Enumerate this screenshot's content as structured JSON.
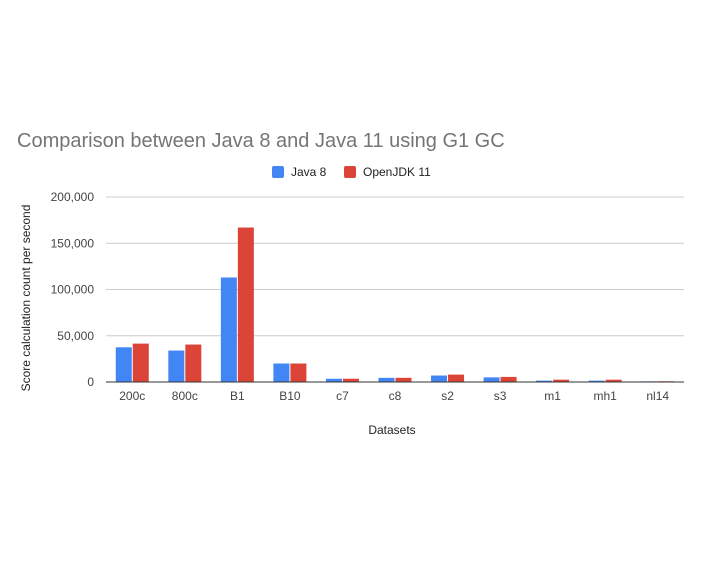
{
  "chart_data": {
    "type": "bar",
    "title": "Comparison between Java 8 and Java 11 using G1 GC",
    "xlabel": "Datasets",
    "ylabel": "Score calculation count per second",
    "categories": [
      "200c",
      "800c",
      "B1",
      "B10",
      "c7",
      "c8",
      "s2",
      "s3",
      "m1",
      "mh1",
      "nl14"
    ],
    "series": [
      {
        "name": "Java 8",
        "color": "#4285f4",
        "values": [
          37500,
          34000,
          113000,
          20000,
          3500,
          4500,
          7000,
          5000,
          1500,
          1500,
          700
        ]
      },
      {
        "name": "OpenJDK 11",
        "color": "#db4437",
        "values": [
          41500,
          40500,
          167000,
          20000,
          3500,
          4500,
          8000,
          5500,
          2500,
          2500,
          800
        ]
      }
    ],
    "ylim": [
      0,
      200000
    ],
    "yticks": [
      "0",
      "50,000",
      "100,000",
      "150,000",
      "200,000"
    ],
    "ytick_values": [
      0,
      50000,
      100000,
      150000,
      200000
    ],
    "grid": true,
    "legend_position": "top-center"
  }
}
